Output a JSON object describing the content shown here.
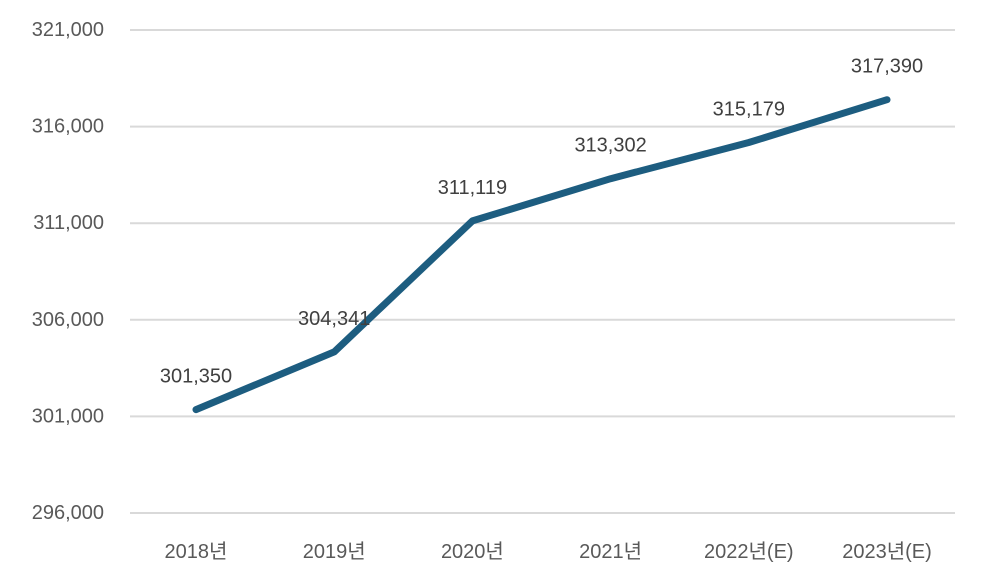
{
  "chart_data": {
    "type": "line",
    "title": "",
    "xlabel": "",
    "ylabel": "",
    "categories": [
      "2018년",
      "2019년",
      "2020년",
      "2021년",
      "2022년(E)",
      "2023년(E)"
    ],
    "values": [
      301350,
      304341,
      311119,
      313302,
      315179,
      317390
    ],
    "data_labels": [
      "301,350",
      "304,341",
      "311,119",
      "313,302",
      "315,179",
      "317,390"
    ],
    "y_ticks": [
      {
        "label": "321,000",
        "value": 321000
      },
      {
        "label": "316,000",
        "value": 316000
      },
      {
        "label": "311,000",
        "value": 311000
      },
      {
        "label": "306,000",
        "value": 306000
      },
      {
        "label": "301,000",
        "value": 301000
      },
      {
        "label": "296,000",
        "value": 296000
      }
    ],
    "ylim": [
      296000,
      321000
    ],
    "grid": true,
    "legend_position": "none",
    "colors": {
      "line": "#1d5d80",
      "gridline": "#d9d9d9",
      "axis_label": "#595959",
      "data_label": "#404040"
    }
  }
}
